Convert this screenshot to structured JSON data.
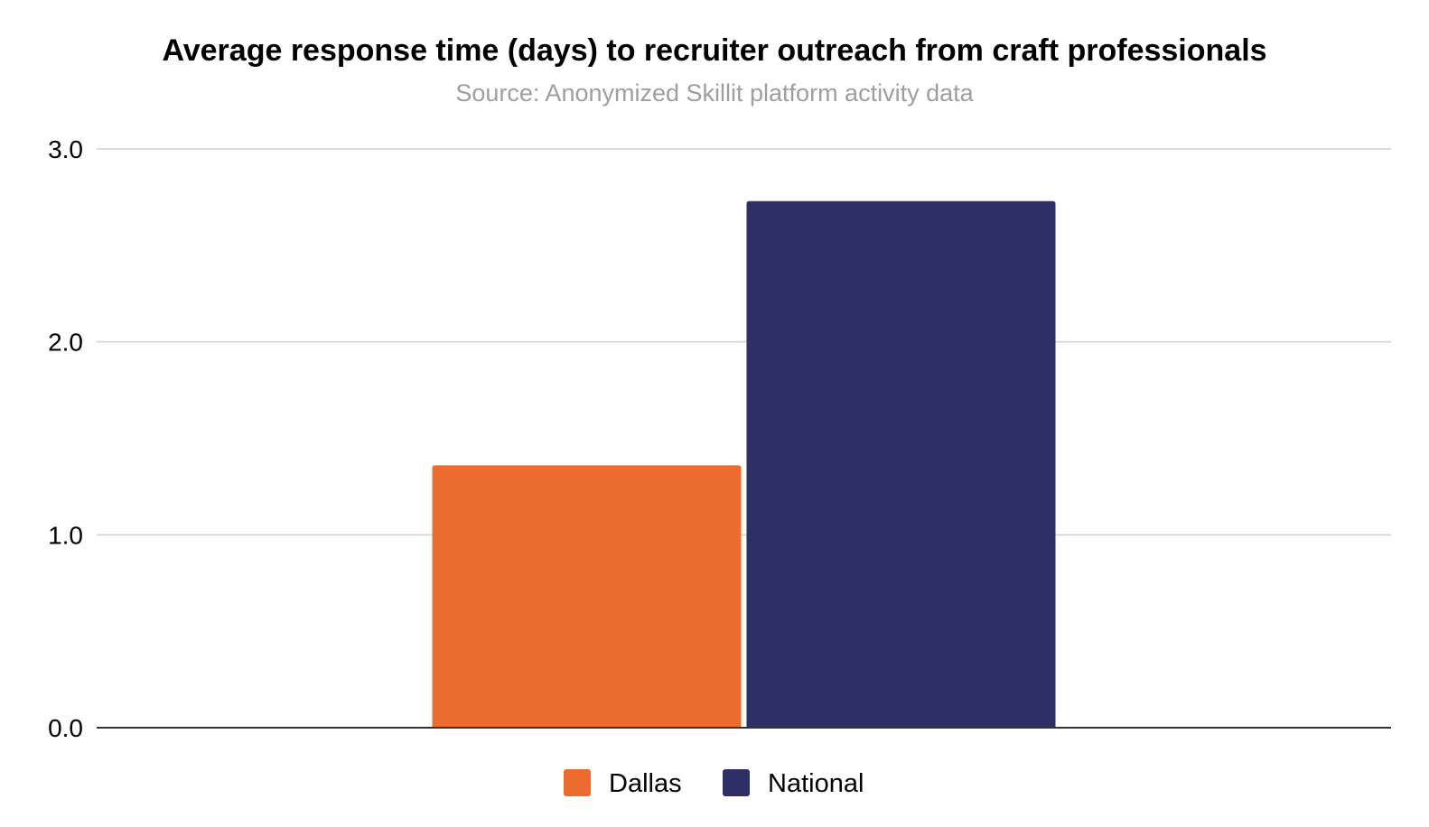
{
  "chart_data": {
    "type": "bar",
    "title": "Average response time (days) to recruiter outreach from craft professionals",
    "subtitle": "Source: Anonymized Skillit platform activity data",
    "xlabel": "",
    "ylabel": "",
    "categories": [
      ""
    ],
    "series": [
      {
        "name": "Dallas",
        "color": "#EC6C2F",
        "values": [
          1.36
        ]
      },
      {
        "name": "National",
        "color": "#2E2F66",
        "values": [
          2.73
        ]
      }
    ],
    "ylim": [
      0,
      3
    ],
    "yticks": [
      "0.0",
      "1.0",
      "2.0",
      "3.0"
    ],
    "grid": true,
    "legend_position": "bottom"
  }
}
